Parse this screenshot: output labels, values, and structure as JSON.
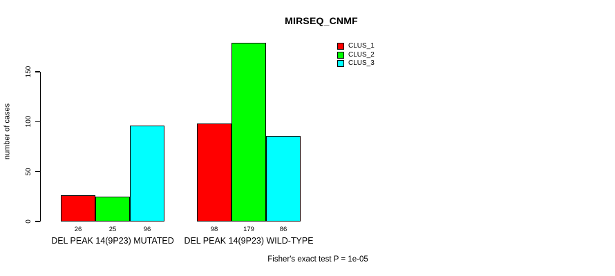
{
  "title": "MIRSEQ_CNMF",
  "y_axis": {
    "label": "number of cases",
    "ticks": [
      0,
      50,
      100,
      150
    ]
  },
  "footer": "Fisher's exact test P = 1e-05",
  "legend": {
    "items": [
      {
        "label": "CLUS_1",
        "color": "#ff0000"
      },
      {
        "label": "CLUS_2",
        "color": "#00ff00"
      },
      {
        "label": "CLUS_3",
        "color": "#00ffff"
      }
    ]
  },
  "chart_data": {
    "type": "bar",
    "title": "MIRSEQ_CNMF",
    "xlabel": "",
    "ylabel": "number of cases",
    "categories": [
      "DEL PEAK 14(9P23) MUTATED",
      "DEL PEAK 14(9P23) WILD-TYPE"
    ],
    "series": [
      {
        "name": "CLUS_1",
        "color": "#ff0000",
        "values": [
          26,
          98
        ]
      },
      {
        "name": "CLUS_2",
        "color": "#00ff00",
        "values": [
          25,
          179
        ]
      },
      {
        "name": "CLUS_3",
        "color": "#00ffff",
        "values": [
          96,
          86
        ]
      }
    ],
    "bar_value_labels": [
      [
        26,
        25,
        96
      ],
      [
        98,
        179,
        86
      ]
    ],
    "yticks": [
      0,
      50,
      100,
      150
    ],
    "ylim": [
      0,
      185
    ],
    "grid": false,
    "legend_position": "top-right",
    "bar_border_color": "#000000",
    "annotation": "Fisher's exact test P = 1e-05"
  }
}
